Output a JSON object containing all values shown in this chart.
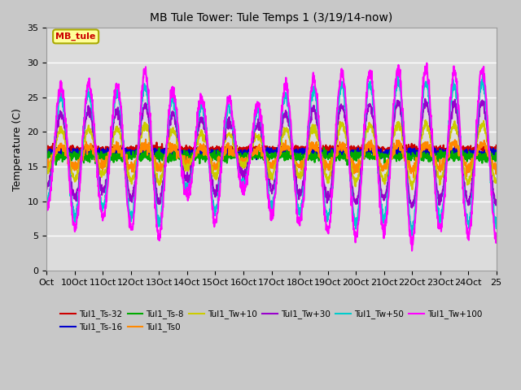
{
  "title": "MB Tule Tower: Tule Temps 1 (3/19/14-now)",
  "ylabel": "Temperature (C)",
  "ylim": [
    0,
    35
  ],
  "yticks": [
    0,
    5,
    10,
    15,
    20,
    25,
    30,
    35
  ],
  "xtick_labels": [
    "Oct",
    "10Oct",
    "11Oct",
    "12Oct",
    "13Oct",
    "14Oct",
    "15Oct",
    "16Oct",
    "17Oct",
    "18Oct",
    "19Oct",
    "20Oct",
    "21Oct",
    "22Oct",
    "23Oct",
    "24Oct",
    "25"
  ],
  "xtick_positions": [
    0,
    1,
    2,
    3,
    4,
    5,
    6,
    7,
    8,
    9,
    10,
    11,
    12,
    13,
    14,
    15,
    16
  ],
  "legend_label": "MB_tule",
  "plot_bg_color": "#dcdcdc",
  "fig_bg_color": "#c8c8c8",
  "series": [
    {
      "label": "Tul1_Ts-32",
      "color": "#cc0000",
      "lw": 1.5
    },
    {
      "label": "Tul1_Ts-16",
      "color": "#0000cc",
      "lw": 1.5
    },
    {
      "label": "Tul1_Ts-8",
      "color": "#00aa00",
      "lw": 1.5
    },
    {
      "label": "Tul1_Ts0",
      "color": "#ff8800",
      "lw": 1.5
    },
    {
      "label": "Tul1_Tw+10",
      "color": "#cccc00",
      "lw": 1.5
    },
    {
      "label": "Tul1_Tw+30",
      "color": "#9900cc",
      "lw": 1.5
    },
    {
      "label": "Tul1_Tw+50",
      "color": "#00cccc",
      "lw": 1.5
    },
    {
      "label": "Tul1_Tw+100",
      "color": "#ff00ff",
      "lw": 1.5
    }
  ],
  "amp_by_day": [
    8,
    11,
    9,
    11,
    12,
    6,
    10,
    5,
    9,
    10,
    11,
    12,
    11,
    13,
    11,
    12,
    9
  ],
  "base_temps": {
    "ts32": 17.5,
    "ts16": 17.0,
    "ts8": 16.5,
    "ts0": 16.5,
    "tw10": 17.0,
    "tw30": 17.0,
    "tw50": 17.0,
    "tw100": 17.0
  }
}
